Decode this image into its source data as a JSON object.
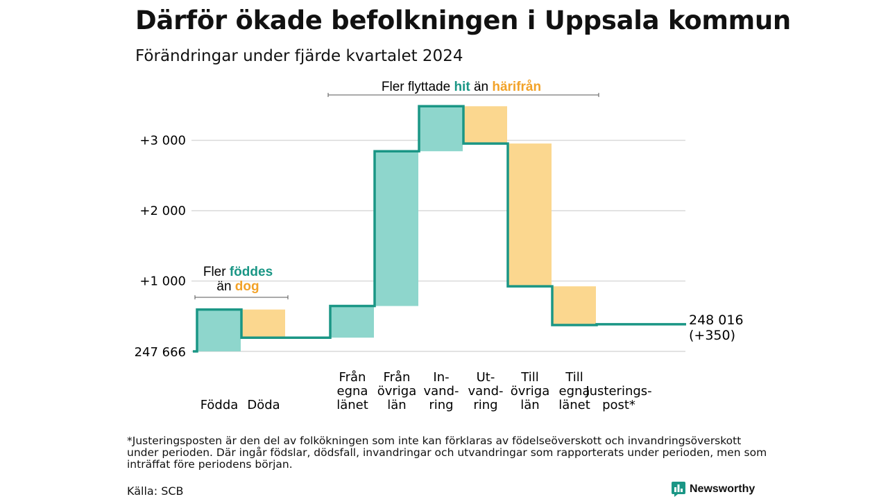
{
  "title": "Därför ökade befolkningen i Uppsala kommun",
  "subtitle": "Förändringar under fjärde kvartalet 2024",
  "colors": {
    "increase": "#8ed6cc",
    "decrease": "#fbd78f",
    "line": "#1a9685",
    "accent_orange": "#f2a228",
    "grid": "#d9d9d9"
  },
  "annotations": {
    "births": {
      "line1": "Fler",
      "line1_hl": "föddes",
      "line2": "än",
      "line2_hl": "dog"
    },
    "migration": {
      "text": "Fler flyttade",
      "hl1": "hit",
      "mid": "än",
      "hl2": "härifrån"
    }
  },
  "end_label": {
    "value": "248 016",
    "change": "(+350)"
  },
  "start_label": "247 666",
  "footnote": "*Justeringsposten är den del av folkökningen som inte kan förklaras av födelseöverskott och invandringsöverskott under perioden. Där ingår födslar, dödsfall, invandringar och utvandringar som rapporterats under perioden, men som inträffat före periodens början.",
  "source": "Källa: SCB",
  "logo": {
    "name": "Newsworthy",
    "icon": "bar-chart-logo-icon"
  },
  "chart_data": {
    "type": "bar",
    "subtype": "waterfall",
    "base": 247666,
    "end": 248016,
    "change": 350,
    "categories": [
      {
        "label": [
          "Födda"
        ],
        "delta": 595,
        "kind": "increase"
      },
      {
        "label": [
          "Döda"
        ],
        "delta": -400,
        "kind": "decrease"
      },
      {
        "label": [],
        "delta": 0,
        "kind": "gap"
      },
      {
        "label": [
          "Från",
          "egna",
          "länet"
        ],
        "delta": 450,
        "kind": "increase"
      },
      {
        "label": [
          "Från",
          "övriga",
          "län"
        ],
        "delta": 2200,
        "kind": "increase"
      },
      {
        "label": [
          "In-",
          "vand-",
          "ring"
        ],
        "delta": 640,
        "kind": "increase"
      },
      {
        "label": [
          "Ut-",
          "vand-",
          "ring"
        ],
        "delta": -530,
        "kind": "decrease"
      },
      {
        "label": [
          "Till",
          "övriga",
          "län"
        ],
        "delta": -2030,
        "kind": "decrease"
      },
      {
        "label": [
          "Till",
          "egna",
          "länet"
        ],
        "delta": -550,
        "kind": "decrease"
      },
      {
        "label": [
          "Justerings-",
          "post*"
        ],
        "delta": 10,
        "kind": "adjustment"
      }
    ],
    "y_ticks": [
      {
        "value": 0,
        "label": ""
      },
      {
        "value": 1000,
        "label": "+1 000"
      },
      {
        "value": 2000,
        "label": "+2 000"
      },
      {
        "value": 3000,
        "label": "+3 000"
      }
    ],
    "ylim": [
      0,
      3500
    ],
    "grid": true
  }
}
